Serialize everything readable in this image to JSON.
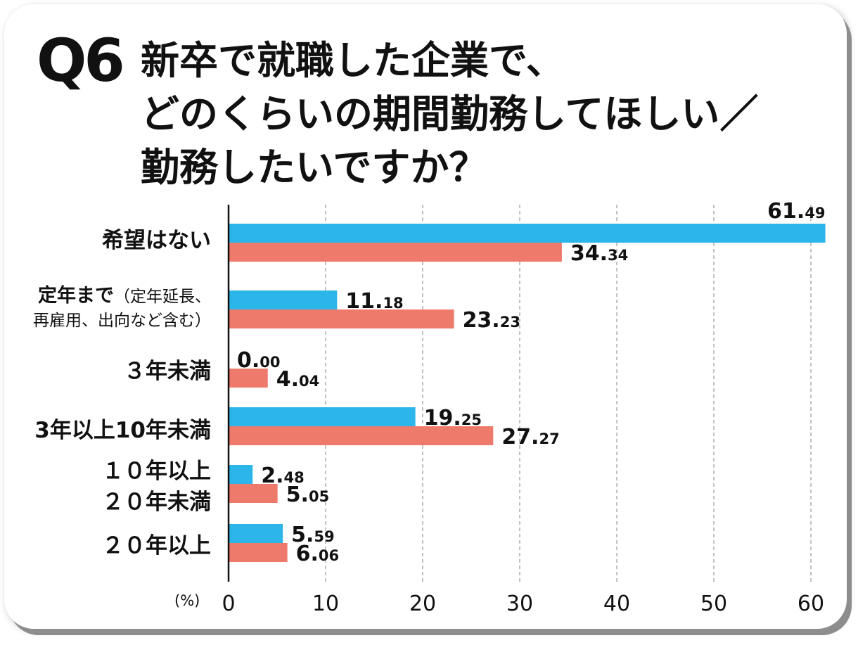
{
  "question_number": "Q6",
  "title_lines": [
    "新卒で就職した企業で、",
    "どのくらいの期間勤務してほしい／",
    "勤務したいですか？"
  ],
  "colors": {
    "series_blue": "#2bb5e8",
    "series_red": "#ee7a6c",
    "grid": "#9a9a9a"
  },
  "chart_data": {
    "type": "bar",
    "orientation": "horizontal",
    "title": "新卒で就職した企業で、どのくらいの期間勤務してほしい／勤務したいですか？",
    "unit_label": "(%)",
    "xlim": [
      0,
      60
    ],
    "xticks": [
      0,
      10,
      20,
      30,
      40,
      50,
      60
    ],
    "grid": "vertical dashed",
    "categories": [
      "希望はない",
      "定年まで（定年延長、再雇用、出向など含む）",
      "３年未満",
      "3年以上10年未満",
      "１０年以上２０年未満",
      "２０年以上"
    ],
    "category_labels": [
      {
        "line1": "希望はない"
      },
      {
        "line1": "定年まで",
        "line1_paren": "（定年延長、",
        "line2": "再雇用、出向など含む）"
      },
      {
        "line1": "３年未満"
      },
      {
        "line1": "3年以上10年未満"
      },
      {
        "line1": "１０年以上",
        "line2": "２０年未満"
      },
      {
        "line1": "２０年以上"
      }
    ],
    "series": [
      {
        "name": "blue",
        "color": "#2bb5e8",
        "values": [
          61.49,
          11.18,
          0.0,
          19.25,
          2.48,
          5.59
        ],
        "labels": [
          "61.49",
          "11.18",
          "0.00",
          "19.25",
          "2.48",
          "5.59"
        ]
      },
      {
        "name": "red",
        "color": "#ee7a6c",
        "values": [
          34.34,
          23.23,
          4.04,
          27.27,
          5.05,
          6.06
        ],
        "labels": [
          "34.34",
          "23.23",
          "4.04",
          "27.27",
          "5.05",
          "6.06"
        ]
      }
    ]
  }
}
